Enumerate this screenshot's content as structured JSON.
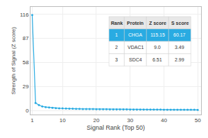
{
  "chart_data": {
    "type": "line",
    "x": [
      1,
      2,
      3,
      4,
      5,
      6,
      7,
      8,
      9,
      10,
      11,
      12,
      13,
      14,
      15,
      16,
      17,
      18,
      19,
      20,
      21,
      22,
      23,
      24,
      25,
      26,
      27,
      28,
      29,
      30,
      31,
      32,
      33,
      34,
      35,
      36,
      37,
      38,
      39,
      40,
      41,
      42,
      43,
      44,
      45,
      46,
      47,
      48,
      49,
      50
    ],
    "values": [
      115.15,
      9.0,
      6.51,
      4.8,
      4.0,
      3.5,
      3.1,
      2.8,
      2.6,
      2.4,
      2.2,
      2.1,
      2.0,
      1.9,
      1.8,
      1.75,
      1.7,
      1.65,
      1.6,
      1.55,
      1.5,
      1.45,
      1.4,
      1.35,
      1.3,
      1.25,
      1.2,
      1.18,
      1.15,
      1.12,
      1.1,
      1.08,
      1.06,
      1.04,
      1.02,
      1.0,
      0.98,
      0.96,
      0.94,
      0.92,
      0.9,
      0.88,
      0.86,
      0.84,
      0.82,
      0.8,
      0.78,
      0.76,
      0.74,
      0.72
    ],
    "color": "#29ABE2",
    "marker": "circle",
    "xlabel": "Signal Rank (Top 50)",
    "ylabel": "Strength of Signal (Z score)",
    "xlim": [
      0.5,
      51
    ],
    "ylim": [
      -5,
      125
    ],
    "xticks": [
      1,
      10,
      20,
      30,
      40,
      50
    ],
    "yticks": [
      0,
      29,
      58,
      87,
      116
    ],
    "grid": true,
    "table": [
      [
        "Rank",
        "Protein",
        "Z score",
        "S score"
      ],
      [
        "1",
        "CHGA",
        "115.15",
        "60.17"
      ],
      [
        "2",
        "VDAC1",
        "9.0",
        "3.49"
      ],
      [
        "3",
        "SDC4",
        "6.51",
        "2.99"
      ]
    ]
  }
}
